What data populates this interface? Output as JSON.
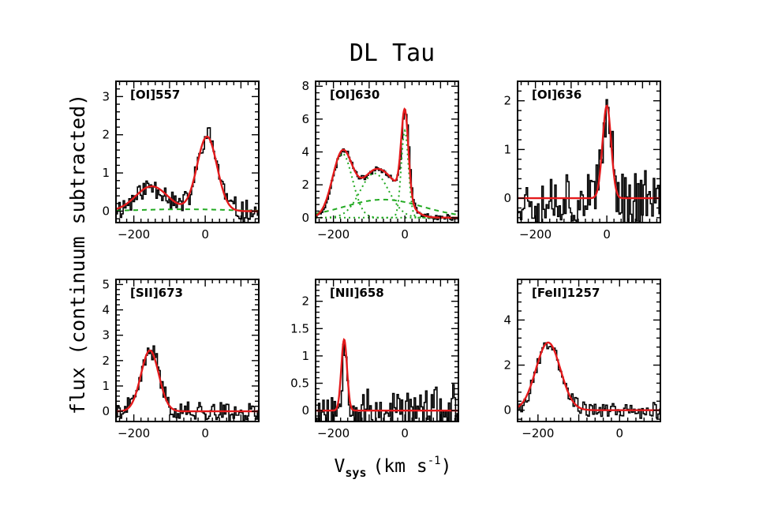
{
  "figure": {
    "title": "DL Tau",
    "ylabel": "flux (continuum subtracted)",
    "xlabel_main": "V",
    "xlabel_sub": "sys",
    "xlabel_unit": "(km s",
    "xlabel_exp": "-1",
    "xlabel_close": ")"
  },
  "colors": {
    "observed": "#000000",
    "fit": "#e41a1c",
    "component": "#22aa22"
  },
  "chart_data": [
    {
      "type": "line",
      "label": "[OI]557",
      "xlim": [
        -250,
        150
      ],
      "ylim": [
        -0.3,
        3.4
      ],
      "xticks": [
        -200,
        0
      ],
      "yticks": [
        0,
        1,
        2,
        3
      ],
      "observed": {
        "noise": 0.28,
        "seed": 11
      },
      "fit": [
        {
          "amp": 0.65,
          "center": -150,
          "sigma": 45
        },
        {
          "amp": 1.95,
          "center": 5,
          "sigma": 28
        }
      ],
      "components": [
        {
          "amp": 0.05,
          "center": -60,
          "sigma": 120,
          "style": "dash"
        }
      ]
    },
    {
      "type": "line",
      "label": "[OI]630",
      "xlim": [
        -250,
        150
      ],
      "ylim": [
        -0.3,
        8.3
      ],
      "xticks": [
        -200,
        0
      ],
      "yticks": [
        0,
        2,
        4,
        6,
        8
      ],
      "observed": {
        "noise": 0.15,
        "seed": 23
      },
      "fit": [
        {
          "amp": 3.9,
          "center": -175,
          "sigma": 28
        },
        {
          "amp": 2.7,
          "center": -85,
          "sigma": 40
        },
        {
          "amp": 5.3,
          "center": 0,
          "sigma": 10
        },
        {
          "amp": 1.2,
          "center": -20,
          "sigma": 35
        }
      ],
      "components": [
        {
          "amp": 3.9,
          "center": -175,
          "sigma": 28,
          "style": "dot"
        },
        {
          "amp": 2.7,
          "center": -85,
          "sigma": 40,
          "style": "dot"
        },
        {
          "amp": 5.3,
          "center": 0,
          "sigma": 10,
          "style": "dot"
        },
        {
          "amp": 1.1,
          "center": -60,
          "sigma": 110,
          "style": "dash"
        }
      ]
    },
    {
      "type": "line",
      "label": "[OI]636",
      "xlim": [
        -250,
        150
      ],
      "ylim": [
        -0.5,
        2.4
      ],
      "xticks": [
        -200,
        0
      ],
      "yticks": [
        0,
        1,
        2
      ],
      "observed": {
        "noise": 0.55,
        "seed": 37
      },
      "fit": [
        {
          "amp": 1.9,
          "center": 0,
          "sigma": 12
        }
      ],
      "components": []
    },
    {
      "type": "line",
      "label": "[SII]673",
      "xlim": [
        -250,
        150
      ],
      "ylim": [
        -0.4,
        5.2
      ],
      "xticks": [
        -200,
        0
      ],
      "yticks": [
        0,
        1,
        2,
        3,
        4,
        5
      ],
      "observed": {
        "noise": 0.35,
        "seed": 41
      },
      "fit": [
        {
          "amp": 2.4,
          "center": -155,
          "sigma": 25
        }
      ],
      "components": []
    },
    {
      "type": "line",
      "label": "[NII]658",
      "xlim": [
        -250,
        150
      ],
      "ylim": [
        -0.2,
        2.4
      ],
      "xticks": [
        -200,
        0
      ],
      "yticks": [
        0,
        0.5,
        1,
        1.5,
        2
      ],
      "observed": {
        "noise": 0.38,
        "seed": 53
      },
      "fit": [
        {
          "amp": 1.3,
          "center": -170,
          "sigma": 8
        }
      ],
      "components": []
    },
    {
      "type": "line",
      "label": "[FeII]1257",
      "xlim": [
        -250,
        100
      ],
      "ylim": [
        -0.5,
        5.8
      ],
      "xticks": [
        -200,
        0
      ],
      "yticks": [
        0,
        2,
        4
      ],
      "observed": {
        "noise": 0.3,
        "seed": 67
      },
      "fit": [
        {
          "amp": 3.0,
          "center": -175,
          "sigma": 30
        }
      ],
      "components": []
    }
  ]
}
